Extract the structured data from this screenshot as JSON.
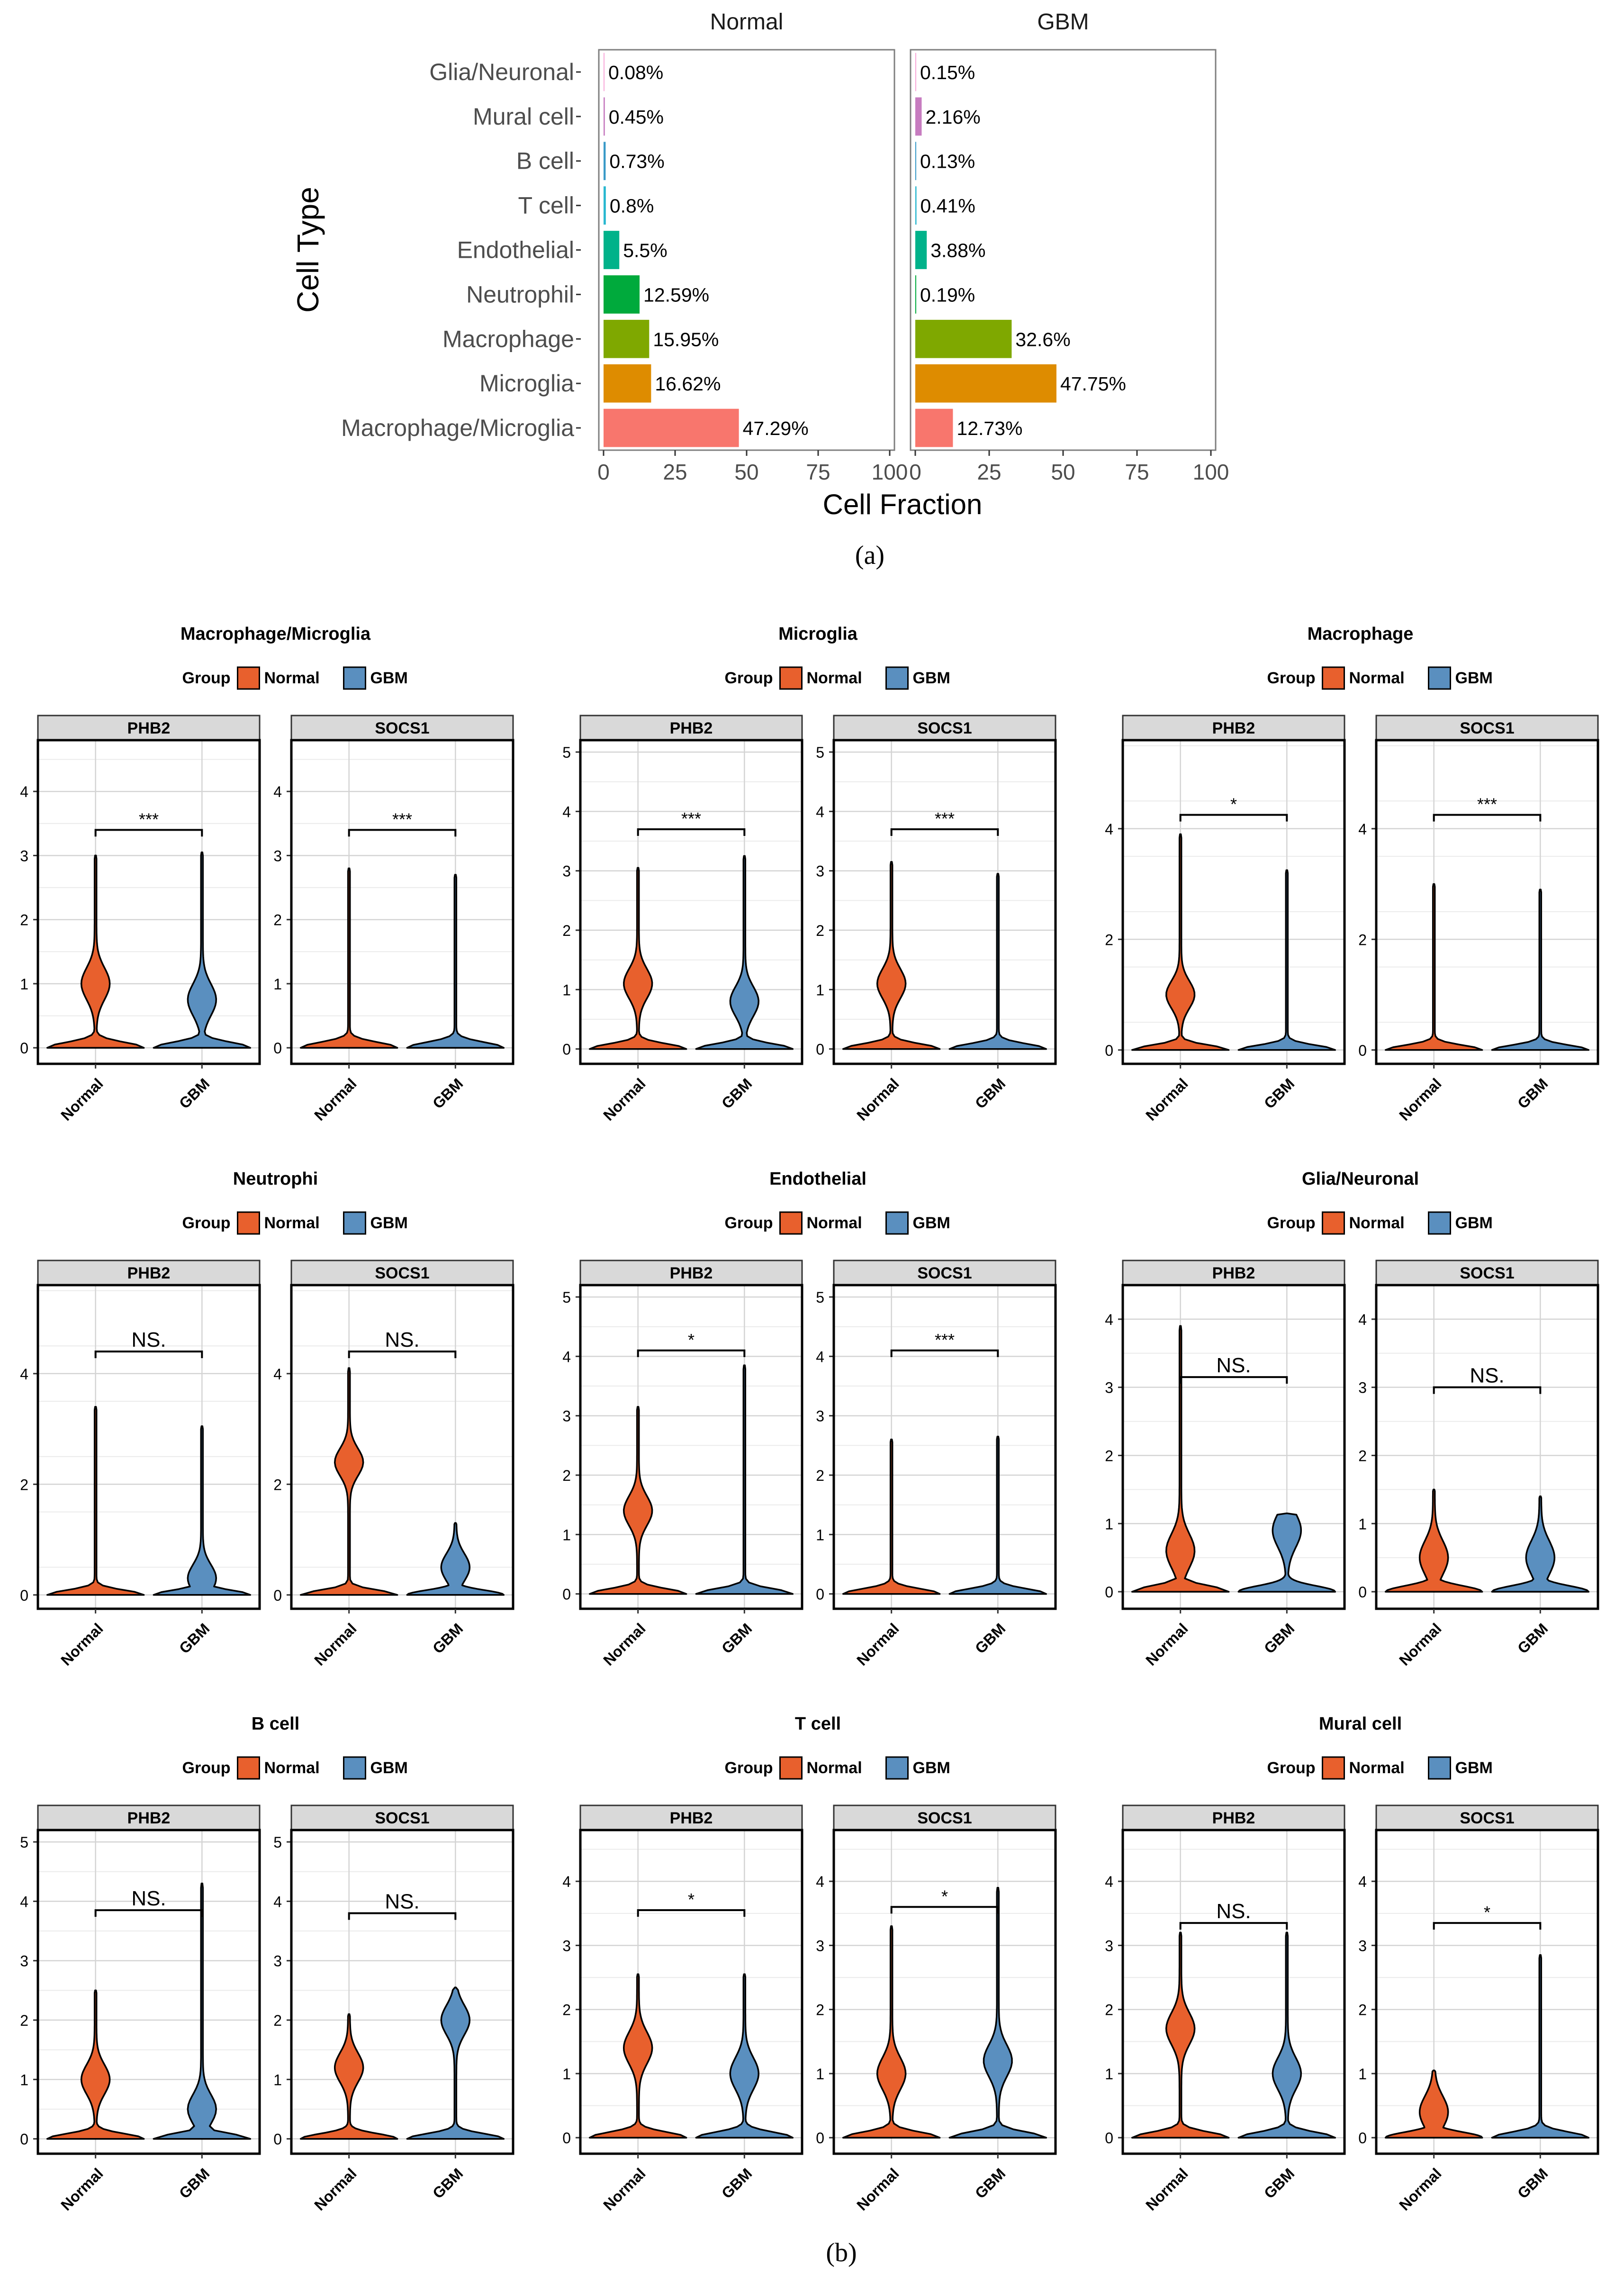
{
  "chart_data": [
    {
      "id": "a",
      "type": "bar",
      "orientation": "horizontal",
      "caption": "(a)",
      "xlabel": "Cell Fraction",
      "ylabel": "Cell Type",
      "xlim": [
        0,
        100
      ],
      "xticks": [
        "0",
        "25",
        "50",
        "75",
        "100"
      ],
      "categories": [
        "Glia/Neuronal",
        "Mural cell",
        "B cell",
        "T cell",
        "Endothelial",
        "Neutrophil",
        "Macrophage",
        "Microglia",
        "Macrophage/Microglia"
      ],
      "colors": [
        "#F8A8D8",
        "#C77CC0",
        "#3A9AC8",
        "#2BB8D0",
        "#00B28A",
        "#00AA3C",
        "#7FA800",
        "#DE8C00",
        "#F8766D"
      ],
      "series": [
        {
          "name": "Normal",
          "values": [
            0.08,
            0.45,
            0.73,
            0.8,
            5.5,
            12.59,
            15.95,
            16.62,
            47.29
          ],
          "labels": [
            "0.08%",
            "0.45%",
            "0.73%",
            "0.8%",
            "5.5%",
            "12.59%",
            "15.95%",
            "16.62%",
            "47.29%"
          ]
        },
        {
          "name": "GBM",
          "values": [
            0.15,
            2.16,
            0.13,
            0.41,
            3.88,
            0.19,
            32.6,
            47.75,
            12.73
          ],
          "labels": [
            "0.15%",
            "2.16%",
            "0.13%",
            "0.41%",
            "3.88%",
            "0.19%",
            "32.6%",
            "47.75%",
            "12.73%"
          ]
        }
      ]
    },
    {
      "id": "b",
      "type": "violin",
      "caption": "(b)",
      "legend": {
        "title": "Group",
        "entries": [
          {
            "name": "Normal",
            "color": "#E8602D"
          },
          {
            "name": "GBM",
            "color": "#5A8FBF"
          }
        ]
      },
      "xcategories": [
        "Normal",
        "GBM"
      ],
      "panels": [
        {
          "title": "Macrophage/Microglia",
          "facets": [
            {
              "gene": "PHB2",
              "ymax": 4.8,
              "yticks": [
                0,
                1,
                2,
                3,
                4
              ],
              "sig": "***",
              "bracket_y": 3.4,
              "normal": {
                "max": 3.0,
                "bulge": 1.0
              },
              "gbm": {
                "max": 3.05,
                "bulge": 0.75
              }
            },
            {
              "gene": "SOCS1",
              "ymax": 4.8,
              "yticks": [
                0,
                1,
                2,
                3,
                4
              ],
              "sig": "***",
              "bracket_y": 3.4,
              "normal": {
                "max": 2.8,
                "bulge": 0
              },
              "gbm": {
                "max": 2.7,
                "bulge": 0
              }
            }
          ]
        },
        {
          "title": "Microglia",
          "facets": [
            {
              "gene": "PHB2",
              "ymax": 5.2,
              "yticks": [
                0,
                1,
                2,
                3,
                4,
                5
              ],
              "sig": "***",
              "bracket_y": 3.7,
              "normal": {
                "max": 3.05,
                "bulge": 1.1
              },
              "gbm": {
                "max": 3.25,
                "bulge": 0.8
              }
            },
            {
              "gene": "SOCS1",
              "ymax": 5.2,
              "yticks": [
                0,
                1,
                2,
                3,
                4,
                5
              ],
              "sig": "***",
              "bracket_y": 3.7,
              "normal": {
                "max": 3.15,
                "bulge": 1.1
              },
              "gbm": {
                "max": 2.95,
                "bulge": 0
              }
            }
          ]
        },
        {
          "title": "Macrophage",
          "facets": [
            {
              "gene": "PHB2",
              "ymax": 5.6,
              "yticks": [
                0,
                2,
                4
              ],
              "sig": "*",
              "bracket_y": 4.25,
              "normal": {
                "max": 3.9,
                "bulge": 1.0
              },
              "gbm": {
                "max": 3.25,
                "bulge": 0
              }
            },
            {
              "gene": "SOCS1",
              "ymax": 5.6,
              "yticks": [
                0,
                2,
                4
              ],
              "sig": "***",
              "bracket_y": 4.25,
              "normal": {
                "max": 3.0,
                "bulge": 0
              },
              "gbm": {
                "max": 2.9,
                "bulge": 0
              }
            }
          ]
        },
        {
          "title": "Neutrophi",
          "facets": [
            {
              "gene": "PHB2",
              "ymax": 5.6,
              "yticks": [
                0,
                2,
                4
              ],
              "sig": "NS.",
              "bracket_y": 4.4,
              "normal": {
                "max": 3.4,
                "bulge": 0
              },
              "gbm": {
                "max": 3.05,
                "bulge": 0.3
              }
            },
            {
              "gene": "SOCS1",
              "ymax": 5.6,
              "yticks": [
                0,
                2,
                4
              ],
              "sig": "NS.",
              "bracket_y": 4.4,
              "normal": {
                "max": 4.1,
                "bulge": 2.4
              },
              "gbm": {
                "max": 1.3,
                "bulge": 0.5
              }
            }
          ]
        },
        {
          "title": "Endothelial",
          "facets": [
            {
              "gene": "PHB2",
              "ymax": 5.2,
              "yticks": [
                0,
                1,
                2,
                3,
                4,
                5
              ],
              "sig": "*",
              "bracket_y": 4.1,
              "normal": {
                "max": 3.15,
                "bulge": 1.4
              },
              "gbm": {
                "max": 3.85,
                "bulge": 0
              }
            },
            {
              "gene": "SOCS1",
              "ymax": 5.2,
              "yticks": [
                0,
                1,
                2,
                3,
                4,
                5
              ],
              "sig": "***",
              "bracket_y": 4.1,
              "normal": {
                "max": 2.6,
                "bulge": 0
              },
              "gbm": {
                "max": 2.65,
                "bulge": 0
              }
            }
          ]
        },
        {
          "title": "Glia/Neuronal",
          "facets": [
            {
              "gene": "PHB2",
              "ymax": 4.5,
              "yticks": [
                0,
                1,
                2,
                3,
                4
              ],
              "sig": "NS.",
              "bracket_y": 3.15,
              "normal": {
                "max": 3.9,
                "bulge": 0.6
              },
              "gbm": {
                "max": 1.15,
                "bulge": 0.9
              }
            },
            {
              "gene": "SOCS1",
              "ymax": 4.5,
              "yticks": [
                0,
                1,
                2,
                3,
                4
              ],
              "sig": "NS.",
              "bracket_y": 3.0,
              "normal": {
                "max": 1.5,
                "bulge": 0.5
              },
              "gbm": {
                "max": 1.4,
                "bulge": 0.5
              }
            }
          ]
        },
        {
          "title": "B cell",
          "facets": [
            {
              "gene": "PHB2",
              "ymax": 5.2,
              "yticks": [
                0,
                1,
                2,
                3,
                4,
                5
              ],
              "sig": "NS.",
              "bracket_y": 3.85,
              "normal": {
                "max": 2.5,
                "bulge": 1.0
              },
              "gbm": {
                "max": 4.3,
                "bulge": 0.5
              }
            },
            {
              "gene": "SOCS1",
              "ymax": 5.2,
              "yticks": [
                0,
                1,
                2,
                3,
                4,
                5
              ],
              "sig": "NS.",
              "bracket_y": 3.8,
              "normal": {
                "max": 2.1,
                "bulge": 1.2
              },
              "gbm": {
                "max": 2.55,
                "bulge": 2.0
              }
            }
          ]
        },
        {
          "title": "T cell",
          "facets": [
            {
              "gene": "PHB2",
              "ymax": 4.8,
              "yticks": [
                0,
                1,
                2,
                3,
                4
              ],
              "sig": "*",
              "bracket_y": 3.55,
              "normal": {
                "max": 2.55,
                "bulge": 1.4
              },
              "gbm": {
                "max": 2.55,
                "bulge": 1.0
              }
            },
            {
              "gene": "SOCS1",
              "ymax": 4.8,
              "yticks": [
                0,
                1,
                2,
                3,
                4
              ],
              "sig": "*",
              "bracket_y": 3.6,
              "normal": {
                "max": 3.3,
                "bulge": 1.0
              },
              "gbm": {
                "max": 3.9,
                "bulge": 1.2
              }
            }
          ]
        },
        {
          "title": "Mural cell",
          "facets": [
            {
              "gene": "PHB2",
              "ymax": 4.8,
              "yticks": [
                0,
                1,
                2,
                3,
                4
              ],
              "sig": "NS.",
              "bracket_y": 3.35,
              "normal": {
                "max": 3.2,
                "bulge": 1.7
              },
              "gbm": {
                "max": 3.2,
                "bulge": 1.0
              }
            },
            {
              "gene": "SOCS1",
              "ymax": 4.8,
              "yticks": [
                0,
                1,
                2,
                3,
                4
              ],
              "sig": "*",
              "bracket_y": 3.35,
              "normal": {
                "max": 1.05,
                "bulge": 0.4
              },
              "gbm": {
                "max": 2.85,
                "bulge": 0
              }
            }
          ]
        }
      ]
    }
  ]
}
